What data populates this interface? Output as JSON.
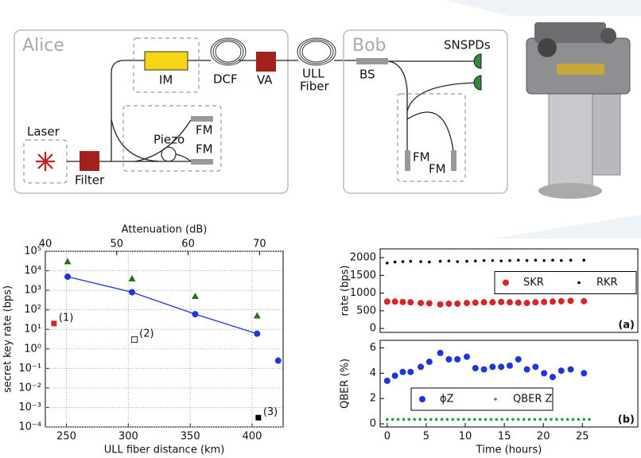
{
  "diagram": {
    "alice": "Alice",
    "laser": "Laser",
    "filter": "Filter",
    "im": "IM",
    "dcf": "DCF",
    "va": "VA",
    "ull_fiber": [
      "ULL",
      "Fiber"
    ],
    "piezo": "Piezo",
    "alice_fm": [
      "FM",
      "FM"
    ],
    "bob": "Bob",
    "bs": "BS",
    "snspds": "SNSPDs",
    "bob_fm": [
      "FM",
      "FM"
    ]
  },
  "chart_data": [
    {
      "type": "scatter",
      "xlabel": "ULL fiber distance (km)",
      "ylabel": "secret key rate (bps)",
      "x2label": "Attenuation (dB)",
      "xlim": [
        233,
        425
      ],
      "xticks": [
        250,
        300,
        350,
        400
      ],
      "x2lim": [
        40,
        73.3
      ],
      "x2ticks": [
        40,
        50,
        60,
        70
      ],
      "ylog": true,
      "ylim": [
        0.0001,
        100000
      ],
      "grid": true,
      "yticks": [
        {
          "value": 100000,
          "label": "10⁵"
        },
        {
          "value": 10000,
          "label": "10⁴"
        },
        {
          "value": 1000,
          "label": "10³"
        },
        {
          "value": 100,
          "label": "10²"
        },
        {
          "value": 10,
          "label": "10¹"
        },
        {
          "value": 1,
          "label": "10⁰"
        },
        {
          "value": 0.1,
          "label": "10⁻¹"
        },
        {
          "value": 0.01,
          "label": "10⁻²"
        },
        {
          "value": 0.001,
          "label": "10⁻³"
        },
        {
          "value": 0.0001,
          "label": "10⁻⁴"
        }
      ],
      "series": [
        {
          "color": "#1d35d9",
          "marker": "circle",
          "line": true,
          "x": [
            251,
            303,
            354,
            404
          ],
          "values": [
            5000,
            800,
            60,
            6
          ]
        },
        {
          "color": "#1d35d9",
          "marker": "circle",
          "x": [
            421
          ],
          "values": [
            0.25
          ]
        },
        {
          "color": "#2e6b1e",
          "marker": "triangle",
          "x": [
            251,
            303,
            354,
            404
          ],
          "values": [
            30000,
            4000,
            500,
            50
          ]
        },
        {
          "color": "#d62728",
          "marker": "square",
          "x": [
            240
          ],
          "values": [
            20
          ],
          "label": "(1)"
        },
        {
          "color": "#222222",
          "marker": "square-open",
          "x": [
            305
          ],
          "values": [
            3
          ],
          "label": "(2)"
        },
        {
          "color": "#000000",
          "marker": "square",
          "x": [
            405
          ],
          "values": [
            0.0003
          ],
          "label": "(3)"
        }
      ]
    },
    {
      "type": "scatter",
      "ylabel": "rate (bps)",
      "panel_label": "(a)",
      "xlim": [
        -0.9,
        32.1
      ],
      "ylim": [
        -110,
        2250
      ],
      "yticks": [
        0,
        500,
        1000,
        1500,
        2000
      ],
      "grid": false,
      "legend": "center right",
      "series": [
        {
          "name": "SKR",
          "color": "#d62728",
          "marker": "circle",
          "x": [
            0,
            1,
            2,
            3,
            4.3,
            5.4,
            6.8,
            7.9,
            9,
            10.2,
            11.3,
            12.4,
            13.5,
            14.6,
            15.7,
            16.8,
            17.9,
            19,
            20.1,
            21.2,
            22.3,
            23.5,
            25.2
          ],
          "values": [
            760,
            760,
            750,
            740,
            720,
            710,
            680,
            700,
            700,
            720,
            730,
            740,
            740,
            750,
            740,
            730,
            720,
            740,
            750,
            760,
            770,
            780,
            770
          ]
        },
        {
          "name": "RKR",
          "color": "#000000",
          "marker": "dot",
          "x": [
            0,
            1,
            2,
            3,
            4.3,
            5.4,
            6.8,
            7.9,
            9,
            10.2,
            11.3,
            12.4,
            13.5,
            14.6,
            15.7,
            16.8,
            17.9,
            19,
            20.1,
            21.2,
            22.3,
            23.5,
            25.2
          ],
          "values": [
            1850,
            1880,
            1890,
            1900,
            1890,
            1880,
            1900,
            1910,
            1890,
            1900,
            1910,
            1920,
            1920,
            1910,
            1920,
            1930,
            1920,
            1930,
            1920,
            1930,
            1920,
            1930,
            1930
          ]
        }
      ]
    },
    {
      "type": "scatter",
      "xlabel": "Time (hours)",
      "ylabel": "QBER (%)",
      "panel_label": "(b)",
      "xlim": [
        -0.9,
        32.1
      ],
      "xticks": [
        0,
        5,
        10,
        15,
        20,
        25
      ],
      "ylim": [
        -0.25,
        6.6
      ],
      "yticks": [
        0,
        2,
        4,
        6
      ],
      "grid": false,
      "legend": "lower left",
      "series": [
        {
          "name": "ϕZ",
          "color": "#1d35d9",
          "marker": "circle",
          "x": [
            0,
            1,
            2,
            3,
            4.3,
            5.4,
            6.8,
            7.9,
            9,
            10.2,
            11.3,
            12.4,
            13.5,
            14.6,
            15.7,
            16.8,
            17.9,
            19,
            20.1,
            21.2,
            22.3,
            23.5,
            25.2
          ],
          "values": [
            3.4,
            3.8,
            4.1,
            4.1,
            4.5,
            4.9,
            5.6,
            5.1,
            5.1,
            5.3,
            4.4,
            4.3,
            4.5,
            4.5,
            4.6,
            5.1,
            4.3,
            4.5,
            4.0,
            3.7,
            4.2,
            4.3,
            4.0
          ]
        },
        {
          "name": "QBER Z",
          "color": "#2ca02c",
          "marker": "dot",
          "x": [
            0,
            0.7,
            1.4,
            2.1,
            2.8,
            3.5,
            4.2,
            4.9,
            5.6,
            6.3,
            7,
            7.7,
            8.4,
            9.1,
            9.8,
            10.5,
            11.2,
            11.9,
            12.6,
            13.3,
            14,
            14.7,
            15.4,
            16.1,
            16.8,
            17.5,
            18.2,
            18.9,
            19.6,
            20.3,
            21,
            21.7,
            22.4,
            23.1,
            23.8,
            24.5,
            25.2,
            25.9
          ],
          "values": [
            0.35,
            0.35,
            0.35,
            0.35,
            0.35,
            0.35,
            0.35,
            0.35,
            0.35,
            0.35,
            0.35,
            0.35,
            0.35,
            0.35,
            0.35,
            0.35,
            0.35,
            0.35,
            0.35,
            0.35,
            0.35,
            0.35,
            0.35,
            0.35,
            0.35,
            0.35,
            0.35,
            0.35,
            0.35,
            0.35,
            0.35,
            0.35,
            0.35,
            0.35,
            0.35,
            0.35,
            0.35,
            0.35
          ]
        }
      ]
    }
  ]
}
